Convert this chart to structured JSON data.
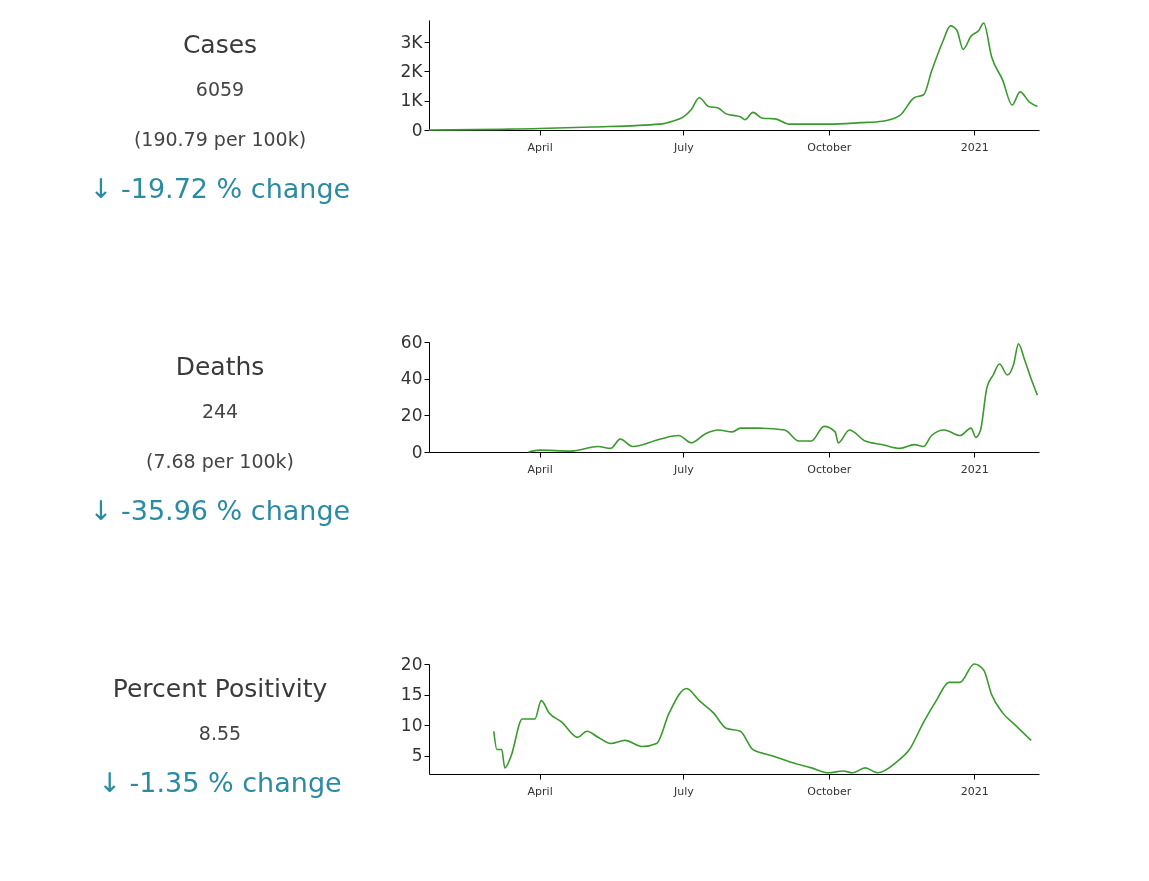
{
  "chart_data": [
    {
      "type": "other",
      "title": "Cases",
      "annotations": [
        "6059",
        "(190.79 per 100k)",
        "↓ -19.72 % change"
      ]
    },
    {
      "type": "line",
      "xlim": [
        "2020-01-22",
        "2021-02-11"
      ],
      "ylim": [
        0,
        3750
      ],
      "xticks": [
        {
          "value": "2020-04-01",
          "label": "April"
        },
        {
          "value": "2020-07-01",
          "label": "July"
        },
        {
          "value": "2020-10-01",
          "label": "October"
        },
        {
          "value": "2021-01-01",
          "label": "2021"
        }
      ],
      "yticks": [
        0,
        {
          "value": 1000,
          "label": "1K"
        },
        {
          "value": 2000,
          "label": "2K"
        },
        {
          "value": 3000,
          "label": "3K"
        }
      ],
      "series": [
        {
          "color": "#3a9a2e",
          "x": [
            "2020-01-22",
            "2020-04-01",
            "2020-05-04",
            "2020-06-16",
            "2020-06-24",
            "2020-07-01",
            "2020-07-06",
            "2020-07-11",
            "2020-07-17",
            "2020-07-23",
            "2020-07-28",
            "2020-08-06",
            "2020-08-09",
            "2020-08-14",
            "2020-08-20",
            "2020-08-28",
            "2020-09-06",
            "2020-10-01",
            "2020-10-21",
            "2020-11-04",
            "2020-11-15",
            "2020-11-24",
            "2020-11-30",
            "2020-12-05",
            "2020-12-12",
            "2020-12-17",
            "2020-12-21",
            "2020-12-25",
            "2020-12-30",
            "2021-01-04",
            "2021-01-07",
            "2021-01-12",
            "2021-01-19",
            "2021-01-25",
            "2021-01-30",
            "2021-02-05",
            "2021-02-10"
          ],
          "values": [
            0,
            50,
            100,
            200,
            300,
            450,
            700,
            1100,
            800,
            750,
            550,
            450,
            350,
            600,
            400,
            380,
            200,
            200,
            250,
            300,
            500,
            1100,
            1200,
            2000,
            3000,
            3550,
            3400,
            2750,
            3200,
            3400,
            3650,
            2500,
            1700,
            850,
            1300,
            950,
            800
          ]
        }
      ]
    },
    {
      "type": "other",
      "title": "Deaths",
      "annotations": [
        "244",
        "(7.68 per 100k)",
        "↓ -35.96 % change"
      ]
    },
    {
      "type": "line",
      "xlim": [
        "2020-01-22",
        "2021-02-11"
      ],
      "ylim": [
        0,
        60
      ],
      "xticks": [
        {
          "value": "2020-04-01",
          "label": "April"
        },
        {
          "value": "2020-07-01",
          "label": "July"
        },
        {
          "value": "2020-10-01",
          "label": "October"
        },
        {
          "value": "2021-01-01",
          "label": "2021"
        }
      ],
      "yticks": [
        0,
        20,
        40,
        60
      ],
      "series": [
        {
          "color": "#3a9a2e",
          "x": [
            "2020-03-25",
            "2020-04-01",
            "2020-04-21",
            "2020-05-08",
            "2020-05-16",
            "2020-05-22",
            "2020-05-30",
            "2020-06-16",
            "2020-06-28",
            "2020-07-06",
            "2020-07-15",
            "2020-07-23",
            "2020-08-01",
            "2020-08-06",
            "2020-08-17",
            "2020-09-03",
            "2020-09-12",
            "2020-09-20",
            "2020-09-28",
            "2020-10-05",
            "2020-10-07",
            "2020-10-14",
            "2020-10-24",
            "2020-11-04",
            "2020-11-15",
            "2020-11-24",
            "2020-11-30",
            "2020-12-05",
            "2020-12-13",
            "2020-12-23",
            "2020-12-30",
            "2021-01-02",
            "2021-01-05",
            "2021-01-09",
            "2021-01-13",
            "2021-01-17",
            "2021-01-22",
            "2021-01-26",
            "2021-01-29",
            "2021-02-02",
            "2021-02-06",
            "2021-02-10"
          ],
          "values": [
            0,
            1,
            0.5,
            3,
            2,
            7,
            3,
            7,
            9,
            5,
            10,
            12,
            11,
            13,
            13,
            12,
            6,
            6,
            14,
            11,
            5,
            12,
            6,
            4,
            2,
            4,
            3,
            9,
            12,
            9,
            13,
            8,
            12,
            35,
            42,
            48,
            42,
            48,
            59,
            50,
            40,
            31
          ]
        }
      ]
    },
    {
      "type": "other",
      "title": "Percent Positivity",
      "annotations": [
        "8.55",
        "↓ -1.35 % change"
      ]
    },
    {
      "type": "line",
      "xlim": [
        "2020-01-22",
        "2021-02-11"
      ],
      "ylim": [
        2,
        20
      ],
      "xticks": [
        {
          "value": "2020-04-01",
          "label": "April"
        },
        {
          "value": "2020-07-01",
          "label": "July"
        },
        {
          "value": "2020-10-01",
          "label": "October"
        },
        {
          "value": "2021-01-01",
          "label": "2021"
        }
      ],
      "yticks": [
        5,
        10,
        15,
        20
      ],
      "series": [
        {
          "color": "#3a9a2e",
          "x": [
            "2020-03-03",
            "2020-03-05",
            "2020-03-08",
            "2020-03-10",
            "2020-03-14",
            "2020-03-21",
            "2020-03-25",
            "2020-03-29",
            "2020-04-02",
            "2020-04-07",
            "2020-04-15",
            "2020-04-25",
            "2020-05-01",
            "2020-05-08",
            "2020-05-16",
            "2020-05-25",
            "2020-06-05",
            "2020-06-14",
            "2020-06-22",
            "2020-07-03",
            "2020-07-11",
            "2020-07-20",
            "2020-07-28",
            "2020-08-06",
            "2020-08-14",
            "2020-08-26",
            "2020-09-06",
            "2020-09-20",
            "2020-10-01",
            "2020-10-10",
            "2020-10-16",
            "2020-10-24",
            "2020-11-01",
            "2020-11-13",
            "2020-11-21",
            "2020-11-30",
            "2020-12-08",
            "2020-12-16",
            "2020-12-23",
            "2021-01-01",
            "2021-01-07",
            "2021-01-12",
            "2021-01-19",
            "2021-01-27",
            "2021-02-06"
          ],
          "values": [
            9,
            6,
            6,
            3,
            5,
            11,
            11,
            11,
            14,
            12,
            10.5,
            8,
            9,
            8,
            7,
            7.5,
            6.5,
            7,
            12,
            16,
            14,
            12,
            9.5,
            9,
            6,
            5,
            4,
            3,
            2.2,
            2.5,
            2.2,
            3,
            2.2,
            4,
            6,
            10.5,
            14,
            17,
            17,
            20,
            19,
            15,
            12,
            10,
            7.5
          ]
        }
      ]
    }
  ]
}
